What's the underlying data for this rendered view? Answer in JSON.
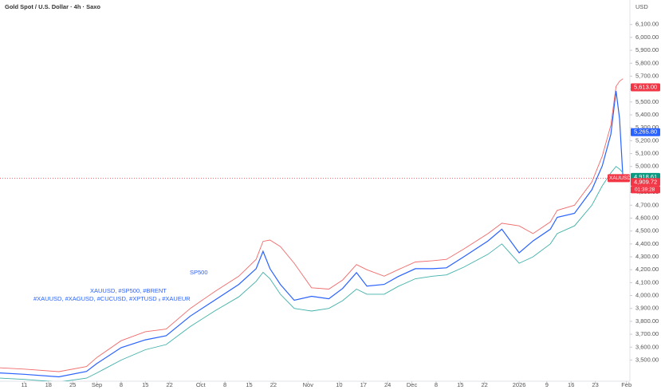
{
  "chart_data": {
    "type": "line",
    "title": "Gold Spot / U.S. Dollar · 4h · Saxo",
    "currency": "USD",
    "annotations": [
      "SP500",
      "XAUUSD, #SP500, #BRENT",
      "#XAUUSD, #XAGUSD, #CUCUSD, #XPTUSD ₓ #XAUEUR"
    ],
    "x": [
      -7,
      0,
      10,
      18,
      21,
      28,
      35,
      41,
      48,
      55,
      62,
      67,
      69,
      71,
      74,
      78,
      83,
      88,
      92,
      96,
      99,
      104,
      108,
      113,
      118,
      122,
      127,
      134,
      138,
      143,
      147,
      152,
      154,
      159,
      164,
      167,
      169.5,
      171,
      172,
      173
    ],
    "series": [
      {
        "color": "#2962ff",
        "values": [
          3400,
          3390,
          3370,
          3412,
          3473,
          3596,
          3657,
          3688,
          3841,
          3963,
          4086,
          4208,
          4343,
          4208,
          4086,
          3963,
          3994,
          3975,
          4055,
          4178,
          4073,
          4086,
          4147,
          4208,
          4208,
          4215,
          4300,
          4423,
          4514,
          4331,
          4423,
          4514,
          4606,
          4637,
          4820,
          5004,
          5249,
          5586,
          5372,
          4910
        ]
      },
      {
        "color": "#f06a6a",
        "values": [
          3440,
          3430,
          3410,
          3450,
          3520,
          3650,
          3720,
          3740,
          3900,
          4030,
          4150,
          4280,
          4420,
          4430,
          4380,
          4250,
          4060,
          4050,
          4120,
          4240,
          4200,
          4150,
          4200,
          4260,
          4270,
          4280,
          4360,
          4480,
          4560,
          4540,
          4480,
          4570,
          4660,
          4700,
          4880,
          5080,
          5320,
          5620,
          5660,
          5680
        ]
      },
      {
        "color": "#3fb0a8",
        "values": [
          3360,
          3350,
          3330,
          3360,
          3400,
          3500,
          3580,
          3620,
          3760,
          3880,
          3990,
          4110,
          4180,
          4130,
          4010,
          3900,
          3880,
          3900,
          3960,
          4050,
          4010,
          4010,
          4070,
          4130,
          4150,
          4160,
          4220,
          4320,
          4400,
          4250,
          4300,
          4400,
          4480,
          4540,
          4700,
          4850,
          4950,
          5000,
          4980,
          4950
        ]
      }
    ],
    "xlim": [
      -7,
      175
    ],
    "xticks": [
      {
        "value": 0,
        "label": "11"
      },
      {
        "value": 7,
        "label": "18"
      },
      {
        "value": 14,
        "label": "25"
      },
      {
        "value": 21,
        "label": "Sep"
      },
      {
        "value": 28,
        "label": "8"
      },
      {
        "value": 35,
        "label": "15"
      },
      {
        "value": 42,
        "label": "22"
      },
      {
        "value": 51,
        "label": "Oct"
      },
      {
        "value": 58,
        "label": "8"
      },
      {
        "value": 65,
        "label": "15"
      },
      {
        "value": 72,
        "label": "22"
      },
      {
        "value": 82,
        "label": "Nov"
      },
      {
        "value": 91,
        "label": "10"
      },
      {
        "value": 98,
        "label": "17"
      },
      {
        "value": 105,
        "label": "24"
      },
      {
        "value": 112,
        "label": "Dec"
      },
      {
        "value": 119,
        "label": "8"
      },
      {
        "value": 126,
        "label": "15"
      },
      {
        "value": 133,
        "label": "22"
      },
      {
        "value": 143,
        "label": "2026"
      },
      {
        "value": 151,
        "label": "9"
      },
      {
        "value": 158,
        "label": "16"
      },
      {
        "value": 165,
        "label": "23"
      },
      {
        "value": 174,
        "label": "Feb"
      }
    ],
    "ylim": [
      3336,
      6290
    ],
    "yticks": [
      {
        "value": 3500,
        "label": "3,500.00"
      },
      {
        "value": 3600,
        "label": "3,600.00"
      },
      {
        "value": 3700,
        "label": "3,700.00"
      },
      {
        "value": 3800,
        "label": "3,800.00"
      },
      {
        "value": 3900,
        "label": "3,900.00"
      },
      {
        "value": 4000,
        "label": "4,000.00"
      },
      {
        "value": 4100,
        "label": "4,100.00"
      },
      {
        "value": 4200,
        "label": "4,200.00"
      },
      {
        "value": 4300,
        "label": "4,300.00"
      },
      {
        "value": 4400,
        "label": "4,400.00"
      },
      {
        "value": 4500,
        "label": "4,500.00"
      },
      {
        "value": 4600,
        "label": "4,600.00"
      },
      {
        "value": 4700,
        "label": "4,700.00"
      },
      {
        "value": 4800,
        "label": "4,800.00"
      },
      {
        "value": 4900,
        "label": "4,900.00"
      },
      {
        "value": 5000,
        "label": "5,000.00"
      },
      {
        "value": 5100,
        "label": "5,100.00"
      },
      {
        "value": 5200,
        "label": "5,200.00"
      },
      {
        "value": 5300,
        "label": "5,300.00"
      },
      {
        "value": 5400,
        "label": "5,400.00"
      },
      {
        "value": 5500,
        "label": "5,500.00"
      },
      {
        "value": 5600,
        "label": "5,600.00"
      },
      {
        "value": 5700,
        "label": "5,700.00"
      },
      {
        "value": 5800,
        "label": "5,800.00"
      },
      {
        "value": 5900,
        "label": "5,900.00"
      },
      {
        "value": 6000,
        "label": "6,000.00"
      },
      {
        "value": 6100,
        "label": "6,100.00"
      }
    ],
    "price_labels": [
      {
        "value": 5613,
        "label": "5,613.00",
        "color": "#f23645"
      },
      {
        "value": 5265.8,
        "label": "5,265.80",
        "color": "#2962ff"
      },
      {
        "value": 4918.61,
        "label": "4,918.61",
        "color": "#089981"
      },
      {
        "value": 4909.72,
        "label": "4,909.72",
        "color": "#f23645"
      }
    ],
    "symbol": "XAUUSD",
    "countdown": "01:39:28"
  }
}
